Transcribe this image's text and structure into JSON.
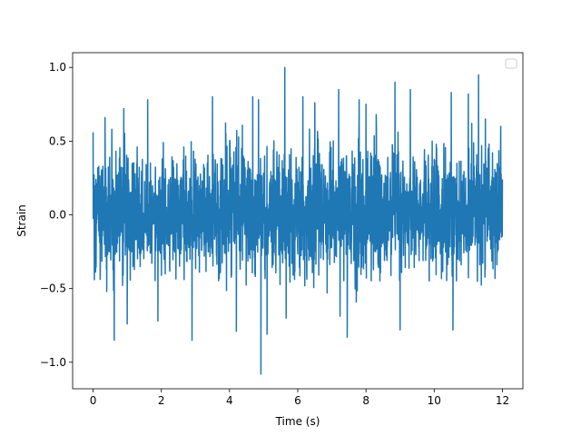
{
  "chart_data": {
    "type": "line",
    "title": "",
    "xlabel": "Time (s)",
    "ylabel": "Strain",
    "xlim": [
      -0.6,
      12.6
    ],
    "ylim": [
      -1.18,
      1.1
    ],
    "x_ticks": [
      0,
      2,
      4,
      6,
      8,
      10,
      12
    ],
    "x_tick_labels": [
      "0",
      "2",
      "4",
      "6",
      "8",
      "10",
      "12"
    ],
    "y_ticks": [
      -1.0,
      -0.5,
      0.0,
      0.5,
      1.0
    ],
    "y_tick_labels": [
      "−1.0",
      "−0.5",
      "0.0",
      "0.5",
      "1.0"
    ],
    "grid": false,
    "legend": {
      "placement": "top-right",
      "entries": []
    },
    "series": [
      {
        "color": "#1f77b4",
        "x_range": [
          0,
          12
        ],
        "x": [
          0.0,
          0.05,
          0.35,
          0.4,
          0.55,
          0.62,
          0.9,
          1.0,
          1.6,
          1.9,
          2.9,
          3.5,
          4.2,
          4.68,
          4.85,
          4.92,
          5.1,
          5.62,
          5.66,
          6.15,
          6.5,
          7.2,
          7.45,
          7.8,
          8.0,
          8.3,
          8.85,
          9.0,
          9.3,
          10.5,
          10.55,
          11.0,
          11.1,
          11.3,
          11.5,
          11.95,
          12.0
        ],
        "y": [
          0.56,
          -0.35,
          0.66,
          -0.52,
          0.58,
          -0.85,
          0.72,
          -0.74,
          0.78,
          -0.72,
          -0.85,
          0.8,
          -0.79,
          0.8,
          0.78,
          -1.08,
          -0.81,
          1.0,
          -0.7,
          0.8,
          0.76,
          0.85,
          -0.83,
          0.78,
          0.75,
          0.68,
          0.9,
          -0.78,
          0.85,
          0.83,
          -0.78,
          0.82,
          0.62,
          0.95,
          0.65,
          0.6,
          0.24
        ],
        "noise_band": {
          "typical_peak": 0.55,
          "sigma": 0.2
        }
      }
    ]
  }
}
